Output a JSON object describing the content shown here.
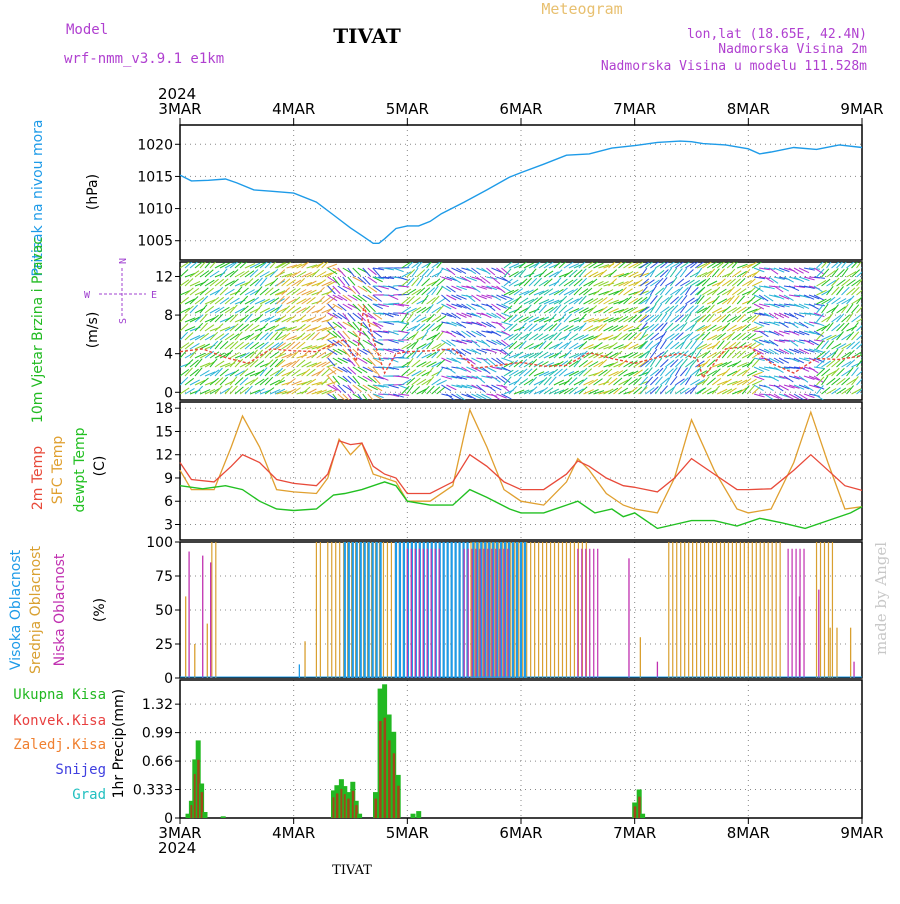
{
  "header": {
    "model_label": "Model",
    "model_name": "wrf-nmm_v3.9.1 e1km",
    "station": "TIVAT",
    "chart_kind": "Meteogram",
    "coords": "lon,lat (18.65E, 42.4N)",
    "elevation": "Nadmorska Visina 2m",
    "model_elevation": "Nadmorska Visina u modelu 111.528m",
    "year": "2024",
    "watermark": "made by Angel",
    "footer_station": "TIVAT"
  },
  "colors": {
    "pressure": "#1e9be8",
    "wind_label": "#22bb22",
    "wind_legend": "#a040d0",
    "temp2m": "#e84a3a",
    "sfc": "#e0a030",
    "dewpt": "#22c022",
    "cloud_high": "#1e9be8",
    "cloud_mid": "#d9a030",
    "cloud_low": "#c030b0",
    "precip_total": "#22b822",
    "precip_conv": "#e84040",
    "precip_frozen": "#f08030",
    "snow": "#4040e0",
    "hail": "#22c0c0",
    "title_purple": "#b040d0",
    "meteogram_gold": "#e8c070"
  },
  "chart_data": [
    {
      "type": "line",
      "panel": "pressure",
      "ylabel": "Pritisak na nivou mora",
      "unit": "(hPa)",
      "x_categories": [
        "3MAR",
        "4MAR",
        "5MAR",
        "6MAR",
        "7MAR",
        "8MAR",
        "9MAR"
      ],
      "ylim": [
        1002,
        1023
      ],
      "yticks": [
        1005,
        1010,
        1015,
        1020
      ],
      "series": [
        {
          "name": "",
          "x": [
            0,
            0.1,
            0.25,
            0.4,
            0.5,
            0.65,
            0.8,
            1.0,
            1.2,
            1.35,
            1.5,
            1.6,
            1.7,
            1.75,
            1.8,
            1.9,
            2.0,
            2.1,
            2.2,
            2.3,
            2.5,
            2.7,
            2.9,
            3.0,
            3.2,
            3.4,
            3.6,
            3.8,
            4.0,
            4.2,
            4.4,
            4.5,
            4.6,
            4.8,
            5.0,
            5.1,
            5.2,
            5.4,
            5.6,
            5.8,
            6.0
          ],
          "values": [
            1015.2,
            1014.3,
            1014.4,
            1014.6,
            1014.0,
            1012.9,
            1012.7,
            1012.4,
            1011.0,
            1009.0,
            1007.0,
            1005.8,
            1004.6,
            1004.6,
            1005.3,
            1006.9,
            1007.3,
            1007.3,
            1008.0,
            1009.2,
            1011.0,
            1012.9,
            1014.9,
            1015.6,
            1016.9,
            1018.3,
            1018.5,
            1019.4,
            1019.8,
            1020.3,
            1020.5,
            1020.4,
            1020.1,
            1019.9,
            1019.3,
            1018.5,
            1018.8,
            1019.5,
            1019.2,
            1019.9,
            1019.5
          ]
        }
      ]
    },
    {
      "type": "line",
      "panel": "wind",
      "ylabel": "10m Vjetar Brzina i Pravac",
      "unit": "(m/s)",
      "legend": {
        "north": "N",
        "west": "W",
        "east": "E",
        "south": "S"
      },
      "ylim": [
        -0.8,
        13.5
      ],
      "yticks": [
        0,
        4,
        8,
        12
      ],
      "series": [
        {
          "name": "",
          "x": [
            0,
            0.2,
            0.4,
            0.6,
            0.8,
            1.0,
            1.2,
            1.35,
            1.45,
            1.55,
            1.62,
            1.7,
            1.8,
            1.9,
            2.0,
            2.2,
            2.4,
            2.6,
            2.8,
            3.0,
            3.2,
            3.4,
            3.6,
            3.8,
            4.0,
            4.2,
            4.4,
            4.55,
            4.6,
            4.8,
            5.0,
            5.2,
            5.4,
            5.6,
            5.8,
            6.0
          ],
          "values": [
            4.2,
            4.5,
            3.6,
            3.0,
            4.5,
            4.3,
            4.2,
            5.0,
            5.5,
            3.2,
            9.0,
            5.5,
            2.0,
            4.0,
            4.2,
            4.3,
            4.5,
            2.5,
            2.8,
            3.1,
            2.7,
            2.8,
            4.1,
            3.5,
            3.0,
            3.6,
            4.0,
            3.5,
            1.5,
            4.5,
            4.8,
            3.0,
            2.0,
            3.5,
            3.4,
            3.8
          ]
        }
      ]
    },
    {
      "type": "line",
      "panel": "temperature",
      "ylabel_2m": "2m Temp",
      "ylabel_sfc": "SFC Temp",
      "ylabel_dew": "dewpt Temp",
      "unit": "(C)",
      "ylim": [
        1.0,
        18.8
      ],
      "yticks": [
        3,
        6,
        9,
        12,
        15,
        18
      ],
      "series": [
        {
          "name": "2m Temp",
          "x": [
            0,
            0.1,
            0.3,
            0.45,
            0.55,
            0.7,
            0.85,
            1.0,
            1.2,
            1.3,
            1.4,
            1.5,
            1.6,
            1.7,
            1.8,
            1.9,
            2.0,
            2.2,
            2.4,
            2.55,
            2.7,
            2.85,
            3.0,
            3.2,
            3.4,
            3.5,
            3.6,
            3.75,
            3.9,
            4.0,
            4.2,
            4.35,
            4.5,
            4.7,
            4.9,
            5.0,
            5.2,
            5.4,
            5.55,
            5.7,
            5.85,
            6.0
          ],
          "values": [
            11.0,
            8.8,
            8.5,
            10.5,
            12.0,
            11.0,
            8.8,
            8.3,
            8.0,
            9.5,
            13.8,
            13.3,
            13.5,
            10.5,
            9.5,
            9.0,
            7.0,
            7.0,
            8.5,
            12.0,
            10.5,
            8.5,
            7.5,
            7.5,
            9.5,
            11.2,
            10.5,
            9.0,
            8.0,
            7.8,
            7.2,
            9.0,
            11.5,
            9.5,
            7.5,
            7.5,
            7.6,
            10.0,
            12.0,
            10.0,
            8.0,
            7.4
          ]
        },
        {
          "name": "SFC Temp",
          "x": [
            0,
            0.1,
            0.3,
            0.45,
            0.55,
            0.7,
            0.85,
            1.0,
            1.2,
            1.3,
            1.4,
            1.5,
            1.6,
            1.7,
            1.8,
            1.9,
            2.0,
            2.2,
            2.4,
            2.55,
            2.7,
            2.85,
            3.0,
            3.2,
            3.4,
            3.5,
            3.6,
            3.75,
            3.9,
            4.0,
            4.2,
            4.35,
            4.5,
            4.7,
            4.9,
            5.0,
            5.2,
            5.4,
            5.55,
            5.7,
            5.85,
            6.0
          ],
          "values": [
            10.0,
            7.5,
            7.5,
            13.0,
            17.0,
            13.0,
            7.5,
            7.2,
            7.0,
            9.0,
            14.0,
            12.0,
            13.5,
            9.5,
            9.0,
            8.5,
            6.0,
            6.0,
            8.0,
            17.8,
            13.0,
            7.5,
            6.0,
            5.5,
            8.5,
            11.5,
            10.0,
            7.0,
            5.5,
            5.0,
            4.5,
            9.0,
            16.5,
            10.0,
            5.0,
            4.5,
            5.0,
            11.0,
            17.5,
            11.0,
            5.0,
            5.3
          ]
        },
        {
          "name": "dewpt Temp",
          "x": [
            0,
            0.2,
            0.4,
            0.55,
            0.7,
            0.85,
            1.0,
            1.2,
            1.35,
            1.45,
            1.6,
            1.8,
            1.9,
            2.0,
            2.2,
            2.4,
            2.55,
            2.7,
            2.9,
            3.0,
            3.2,
            3.4,
            3.5,
            3.65,
            3.8,
            3.9,
            4.0,
            4.2,
            4.35,
            4.5,
            4.7,
            4.9,
            5.1,
            5.3,
            5.5,
            5.7,
            5.9,
            6.0
          ],
          "values": [
            8.0,
            7.6,
            8.0,
            7.5,
            6.0,
            5.0,
            4.8,
            5.0,
            6.8,
            7.0,
            7.5,
            8.5,
            8.0,
            6.0,
            5.5,
            5.5,
            7.5,
            6.5,
            5.0,
            4.5,
            4.5,
            5.5,
            6.0,
            4.5,
            5.0,
            4.0,
            4.5,
            2.5,
            3.0,
            3.5,
            3.5,
            2.8,
            3.8,
            3.2,
            2.5,
            3.5,
            4.5,
            5.3
          ]
        }
      ]
    },
    {
      "type": "bar",
      "panel": "clouds",
      "ylabel_high": "Visoka Oblacnost",
      "ylabel_mid": "Srednja Oblacnost",
      "ylabel_low": "Niska Oblacnost",
      "unit": "(%)",
      "ylim": [
        0,
        100
      ],
      "yticks": [
        0,
        25,
        50,
        75,
        100
      ],
      "bands": [
        {
          "name": "high",
          "ranges": [
            [
              1.45,
              1.78
            ],
            [
              1.9,
              2.55
            ],
            [
              2.58,
              3.05
            ]
          ],
          "value": 100
        },
        {
          "name": "mid",
          "ranges": [
            [
              0.28,
              0.35
            ],
            [
              1.2,
              1.25
            ],
            [
              1.3,
              3.6
            ],
            [
              4.3,
              5.3
            ],
            [
              5.6,
              5.75
            ]
          ],
          "value": 100
        },
        {
          "name": "low",
          "ranges": [
            [
              2.0,
              2.3
            ],
            [
              2.5,
              2.9
            ],
            [
              3.5,
              3.7
            ],
            [
              5.35,
              5.5
            ]
          ],
          "value": 95
        }
      ],
      "spikes": [
        {
          "x": 0.05,
          "v": 60,
          "c": "mid"
        },
        {
          "x": 0.08,
          "v": 93,
          "c": "low"
        },
        {
          "x": 0.13,
          "v": 25,
          "c": "mid"
        },
        {
          "x": 0.2,
          "v": 90,
          "c": "low"
        },
        {
          "x": 0.24,
          "v": 40,
          "c": "mid"
        },
        {
          "x": 0.27,
          "v": 85,
          "c": "low"
        },
        {
          "x": 1.05,
          "v": 10,
          "c": "high"
        },
        {
          "x": 1.1,
          "v": 27,
          "c": "mid"
        },
        {
          "x": 3.95,
          "v": 88,
          "c": "low"
        },
        {
          "x": 4.05,
          "v": 30,
          "c": "mid"
        },
        {
          "x": 4.2,
          "v": 12,
          "c": "low"
        },
        {
          "x": 5.45,
          "v": 60,
          "c": "low"
        },
        {
          "x": 5.62,
          "v": 65,
          "c": "low"
        },
        {
          "x": 5.72,
          "v": 37,
          "c": "mid"
        },
        {
          "x": 5.78,
          "v": 37,
          "c": "mid"
        },
        {
          "x": 5.9,
          "v": 37,
          "c": "mid"
        },
        {
          "x": 5.93,
          "v": 12,
          "c": "low"
        }
      ]
    },
    {
      "type": "bar",
      "panel": "precip",
      "ylabel": "1hr Precip",
      "unit": "(mm)",
      "legend": [
        "Ukupna Kisa",
        "Konvek.Kisa",
        "Zaledj.Kisa",
        "Snijeg",
        "Grad"
      ],
      "ylim": [
        0,
        1.6
      ],
      "yticks": [
        0,
        0.33,
        0.66,
        0.99,
        1.32
      ],
      "yticklabels": [
        "0",
        "0.333",
        "0.66",
        "0.99",
        "1.32"
      ],
      "x": [
        0.07,
        0.1,
        0.13,
        0.16,
        0.19,
        0.22,
        0.38,
        1.35,
        1.38,
        1.42,
        1.45,
        1.48,
        1.52,
        1.55,
        1.58,
        1.72,
        1.76,
        1.8,
        1.84,
        1.88,
        1.92,
        2.05,
        2.1,
        4.0,
        4.04,
        4.07
      ],
      "values": [
        0.05,
        0.2,
        0.68,
        0.9,
        0.4,
        0.07,
        0.02,
        0.32,
        0.38,
        0.45,
        0.37,
        0.3,
        0.42,
        0.2,
        0.05,
        0.3,
        1.5,
        1.55,
        1.2,
        1.0,
        0.5,
        0.05,
        0.08,
        0.18,
        0.33,
        0.05
      ]
    }
  ]
}
